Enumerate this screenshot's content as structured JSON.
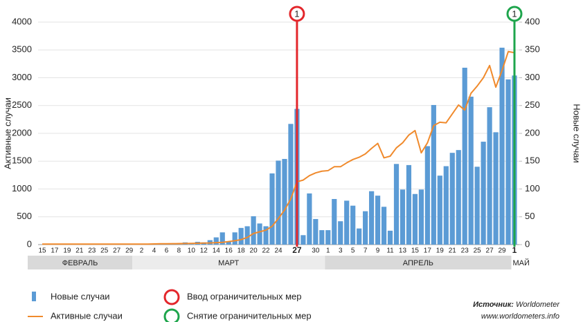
{
  "chart_data": {
    "type": "bar_line",
    "y_label": "Активные случаи",
    "y2_label": "Новые случаи",
    "categories": [
      "15",
      null,
      "17",
      null,
      "19",
      null,
      "21",
      null,
      "23",
      null,
      "25",
      null,
      "27",
      null,
      "29",
      null,
      "2",
      null,
      "4",
      null,
      "6",
      null,
      "8",
      null,
      "10",
      null,
      "12",
      null,
      "14",
      null,
      "16",
      null,
      "18",
      null,
      "20",
      null,
      "22",
      null,
      "24",
      null,
      null,
      "27",
      null,
      null,
      "30",
      null,
      "1",
      null,
      "3",
      null,
      "5",
      null,
      "7",
      null,
      "9",
      null,
      "11",
      null,
      "13",
      null,
      "15",
      null,
      "17",
      null,
      "19",
      null,
      "21",
      null,
      "23",
      null,
      "25",
      null,
      "27",
      null,
      "29",
      null,
      "1"
    ],
    "months": [
      "ФЕВРАЛЬ",
      "МАРТ",
      "АПРЕЛЬ",
      "МАЙ"
    ],
    "series": [
      {
        "name": "Новые случаи",
        "kind": "bar",
        "axis": "y2",
        "color": "#5b9bd5",
        "values": [
          0,
          0,
          0,
          0,
          0,
          0,
          0,
          0,
          0,
          0,
          0,
          0,
          0,
          0,
          0,
          0,
          0,
          0,
          0,
          0,
          0,
          0,
          0,
          4,
          1,
          5,
          4,
          8,
          13,
          22,
          6,
          22,
          30,
          33,
          51,
          38,
          33,
          128,
          151,
          154,
          217,
          244,
          17,
          92,
          46,
          26,
          26,
          82,
          42,
          79,
          70,
          29,
          60,
          96,
          88,
          68,
          25,
          145,
          99,
          143,
          91,
          99,
          177,
          251,
          124,
          141,
          165,
          170,
          318,
          266,
          140,
          185,
          247,
          202,
          354,
          297,
          304
        ]
      },
      {
        "name": "Активные случаи",
        "kind": "line",
        "axis": "y",
        "color": "#f08a2c",
        "values": [
          10,
          10,
          10,
          10,
          10,
          10,
          10,
          10,
          10,
          10,
          10,
          10,
          10,
          10,
          10,
          10,
          10,
          10,
          12,
          15,
          15,
          17,
          18,
          20,
          22,
          25,
          28,
          30,
          35,
          40,
          55,
          70,
          90,
          130,
          200,
          230,
          260,
          330,
          470,
          620,
          820,
          1130,
          1160,
          1240,
          1290,
          1320,
          1330,
          1400,
          1400,
          1470,
          1530,
          1570,
          1630,
          1730,
          1820,
          1560,
          1590,
          1740,
          1830,
          1970,
          2050,
          1650,
          1830,
          2140,
          2200,
          2190,
          2350,
          2510,
          2420,
          2720,
          2850,
          3000,
          3220,
          2830,
          3130,
          3470,
          3450
        ]
      }
    ],
    "markers": [
      {
        "index": 41,
        "label": "1",
        "color": "#e3262b",
        "name": "Ввод ограничительных мер"
      },
      {
        "index": 76,
        "label": "1",
        "color": "#1ea54c",
        "name": "Снятие ограничительных мер"
      }
    ],
    "ylim": [
      0,
      4000
    ],
    "yticks": [
      0,
      500,
      1000,
      1500,
      2000,
      2500,
      3000,
      3500,
      4000
    ],
    "y2lim": [
      0,
      400
    ],
    "y2ticks": [
      0,
      50,
      100,
      150,
      200,
      250,
      300,
      350,
      400
    ],
    "grid": true,
    "source_label": "Источник:",
    "source": "Worldometer",
    "source_url": "www.worldometers.info"
  }
}
